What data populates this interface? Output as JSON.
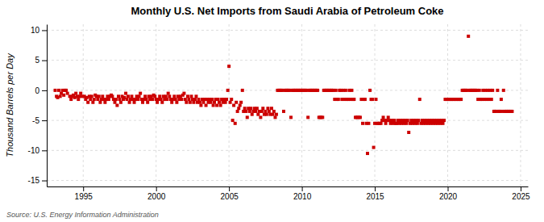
{
  "chart_data": {
    "type": "scatter",
    "title": "Monthly U.S. Net Imports from Saudi Arabia of Petroleum Coke",
    "ylabel": "Thousand Barrels per Day",
    "source": "Source: U.S. Energy Information Administration",
    "xlim": [
      1992.5,
      2025.5
    ],
    "ylim": [
      -16,
      11
    ],
    "xticks": [
      1995,
      2000,
      2005,
      2010,
      2015,
      2020,
      2025
    ],
    "yticks": [
      -15,
      -10,
      -5,
      0,
      5,
      10
    ],
    "grid": true,
    "color": "#cc0000",
    "marker": "square",
    "x": [
      1993.08,
      1993.17,
      1993.25,
      1993.33,
      1993.42,
      1993.5,
      1993.58,
      1993.67,
      1993.75,
      1993.83,
      1993.92,
      1994.08,
      1994.17,
      1994.25,
      1994.33,
      1994.42,
      1994.5,
      1994.58,
      1994.67,
      1994.75,
      1994.83,
      1994.92,
      1995.08,
      1995.17,
      1995.25,
      1995.33,
      1995.42,
      1995.5,
      1995.58,
      1995.67,
      1995.75,
      1995.83,
      1995.92,
      1996.0,
      1996.08,
      1996.17,
      1996.25,
      1996.33,
      1996.42,
      1996.5,
      1996.58,
      1996.67,
      1996.75,
      1996.83,
      1996.92,
      1997.0,
      1997.08,
      1997.17,
      1997.25,
      1997.33,
      1997.42,
      1997.5,
      1997.58,
      1997.67,
      1997.75,
      1997.83,
      1997.92,
      1998.0,
      1998.08,
      1998.17,
      1998.25,
      1998.33,
      1998.42,
      1998.5,
      1998.58,
      1998.67,
      1998.75,
      1998.83,
      1998.92,
      1999.0,
      1999.08,
      1999.17,
      1999.25,
      1999.33,
      1999.42,
      1999.5,
      1999.58,
      1999.67,
      1999.75,
      1999.83,
      1999.92,
      2000.0,
      2000.08,
      2000.17,
      2000.25,
      2000.33,
      2000.42,
      2000.5,
      2000.58,
      2000.67,
      2000.75,
      2000.83,
      2000.92,
      2001.0,
      2001.08,
      2001.17,
      2001.25,
      2001.33,
      2001.42,
      2001.5,
      2001.58,
      2001.67,
      2001.75,
      2001.83,
      2001.92,
      2002.0,
      2002.08,
      2002.17,
      2002.25,
      2002.33,
      2002.42,
      2002.5,
      2002.58,
      2002.67,
      2002.75,
      2002.83,
      2002.92,
      2003.0,
      2003.08,
      2003.17,
      2003.25,
      2003.33,
      2003.42,
      2003.5,
      2003.58,
      2003.67,
      2003.75,
      2003.83,
      2003.92,
      2004.0,
      2004.08,
      2004.17,
      2004.25,
      2004.33,
      2004.42,
      2004.5,
      2004.58,
      2004.67,
      2004.75,
      2004.83,
      2004.92,
      2005.0,
      2005.08,
      2005.17,
      2005.25,
      2005.33,
      2005.42,
      2005.5,
      2005.58,
      2005.67,
      2005.75,
      2005.83,
      2005.92,
      2006.0,
      2006.08,
      2006.17,
      2006.25,
      2006.33,
      2006.42,
      2006.5,
      2006.58,
      2006.67,
      2006.75,
      2006.83,
      2006.92,
      2007.0,
      2007.08,
      2007.17,
      2007.25,
      2007.33,
      2007.42,
      2007.5,
      2007.58,
      2007.67,
      2007.75,
      2007.83,
      2007.92,
      2008.0,
      2008.08,
      2008.17,
      2008.25,
      2008.33,
      2008.42,
      2008.5,
      2008.58,
      2008.67,
      2008.75,
      2008.83,
      2008.92,
      2009.0,
      2009.08,
      2009.17,
      2009.25,
      2009.33,
      2009.42,
      2009.5,
      2009.58,
      2009.67,
      2009.75,
      2009.83,
      2009.92,
      2010.0,
      2010.08,
      2010.17,
      2010.25,
      2010.33,
      2010.42,
      2010.5,
      2010.58,
      2010.67,
      2010.75,
      2010.83,
      2010.92,
      2011.0,
      2011.08,
      2011.17,
      2011.25,
      2011.33,
      2011.42,
      2011.5,
      2011.58,
      2011.67,
      2011.75,
      2011.83,
      2011.92,
      2012.0,
      2012.08,
      2012.17,
      2012.25,
      2012.33,
      2012.42,
      2012.5,
      2012.58,
      2012.67,
      2012.75,
      2012.83,
      2012.92,
      2013.0,
      2013.08,
      2013.17,
      2013.25,
      2013.33,
      2013.42,
      2013.5,
      2013.58,
      2013.67,
      2013.75,
      2013.83,
      2013.92,
      2014.0,
      2014.08,
      2014.17,
      2014.25,
      2014.33,
      2014.42,
      2014.5,
      2014.58,
      2014.67,
      2014.75,
      2014.83,
      2014.92,
      2015.0,
      2015.08,
      2015.17,
      2015.25,
      2015.33,
      2015.42,
      2015.5,
      2015.58,
      2015.67,
      2015.75,
      2015.83,
      2015.92,
      2016.0,
      2016.08,
      2016.17,
      2016.25,
      2016.33,
      2016.42,
      2016.5,
      2016.58,
      2016.67,
      2016.75,
      2016.83,
      2016.92,
      2017.0,
      2017.08,
      2017.17,
      2017.25,
      2017.33,
      2017.42,
      2017.5,
      2017.58,
      2017.67,
      2017.75,
      2017.83,
      2017.92,
      2018.0,
      2018.08,
      2018.17,
      2018.25,
      2018.33,
      2018.42,
      2018.5,
      2018.58,
      2018.67,
      2018.75,
      2018.83,
      2018.92,
      2019.0,
      2019.08,
      2019.17,
      2019.25,
      2019.33,
      2019.42,
      2019.5,
      2019.58,
      2019.67,
      2019.75,
      2019.83,
      2019.92,
      2020.0,
      2020.08,
      2020.17,
      2020.25,
      2020.33,
      2020.42,
      2020.5,
      2020.58,
      2020.67,
      2020.75,
      2020.83,
      2020.92,
      2021.0,
      2021.08,
      2021.17,
      2021.25,
      2021.33,
      2021.42,
      2021.5,
      2021.58,
      2021.67,
      2021.75,
      2021.83,
      2021.92,
      2022.0,
      2022.08,
      2022.17,
      2022.25,
      2022.33,
      2022.42,
      2022.5,
      2022.58,
      2022.67,
      2022.75,
      2022.83,
      2022.92,
      2023.0,
      2023.08,
      2023.17,
      2023.25,
      2023.33,
      2023.42,
      2023.5,
      2023.58,
      2023.67,
      2023.75,
      2023.83,
      2023.92,
      2024.0,
      2024.08,
      2024.17,
      2024.25,
      2024.33,
      2024.42
    ],
    "values": [
      0,
      -1.0,
      -1.2,
      0,
      -1.0,
      -0.5,
      0,
      -0.8,
      0,
      0,
      -0.5,
      -1.0,
      -1.5,
      -1.0,
      -0.8,
      -1.2,
      -0.5,
      -1.0,
      -1.5,
      -1.0,
      -0.5,
      -1.0,
      -1.0,
      -1.5,
      -1.2,
      -2.0,
      -1.0,
      -1.5,
      -1.0,
      -2.0,
      -1.5,
      -0.8,
      -1.0,
      -1.5,
      -1.0,
      -2.0,
      -1.5,
      -1.0,
      -1.5,
      -2.0,
      -1.5,
      -1.0,
      -1.5,
      -1.0,
      -0.8,
      -1.0,
      -1.5,
      -2.0,
      -1.5,
      -2.5,
      -1.0,
      -1.5,
      -2.0,
      -1.0,
      -1.5,
      -1.2,
      -0.5,
      -1.5,
      -1.0,
      -2.0,
      -1.5,
      -1.0,
      -1.5,
      -2.0,
      -1.5,
      -1.0,
      -1.5,
      -1.0,
      -0.5,
      -1.5,
      -2.0,
      -1.5,
      -1.0,
      -1.5,
      -2.0,
      -1.0,
      -1.5,
      -1.0,
      -1.5,
      -0.8,
      -1.0,
      -1.5,
      -2.0,
      -1.5,
      -1.0,
      -1.5,
      -2.0,
      -1.0,
      -1.5,
      -1.0,
      -1.5,
      -0.5,
      -1.0,
      -1.5,
      -2.0,
      -1.5,
      -1.0,
      -1.5,
      -2.0,
      -1.0,
      -1.5,
      -1.0,
      -1.5,
      -0.8,
      -0.5,
      -1.5,
      -2.0,
      -1.0,
      -1.5,
      -2.0,
      -1.0,
      -1.5,
      -2.0,
      -1.5,
      -1.0,
      -2.0,
      -1.5,
      -2.0,
      -2.5,
      -1.5,
      -2.0,
      -1.5,
      -2.5,
      -1.5,
      -2.0,
      -1.5,
      -2.0,
      -1.5,
      -2.5,
      -2.0,
      -1.5,
      -2.5,
      -1.5,
      -2.0,
      -2.5,
      -1.5,
      -2.0,
      -1.5,
      -2.0,
      -1.5,
      0,
      4.0,
      -2.0,
      -1.5,
      -5.0,
      -2.5,
      -5.5,
      -2.0,
      -3.5,
      -3.0,
      -2.5,
      -2.0,
      0,
      -3.5,
      -3.0,
      -3.5,
      -4.5,
      -3.0,
      -3.5,
      -3.0,
      -4.0,
      -3.5,
      -3.0,
      -3.5,
      -3.0,
      -4.0,
      -3.5,
      -4.5,
      -3.5,
      -3.0,
      -4.0,
      -3.5,
      -4.0,
      -3.0,
      -3.5,
      -4.0,
      -3.0,
      -4.0,
      -3.5,
      -4.5,
      -4.0,
      0,
      0,
      0,
      0,
      0,
      -3.5,
      0,
      0,
      0,
      0,
      0,
      -4.5,
      0,
      0,
      0,
      0,
      0,
      0,
      0,
      0,
      0,
      0,
      0,
      0,
      0,
      -4.5,
      0,
      0,
      0,
      0,
      0,
      0,
      0,
      0,
      -4.5,
      -4.5,
      -4.5,
      -4.5,
      0,
      0,
      0,
      0,
      0,
      0,
      0,
      0,
      0,
      -1.5,
      0,
      -1.5,
      -1.5,
      0,
      0,
      -1.5,
      0,
      -1.5,
      0,
      -1.5,
      -1.5,
      0,
      -1.5,
      0,
      -1.5,
      -1.5,
      -4.5,
      -4.5,
      -4.5,
      -4.5,
      -4.5,
      -1.5,
      -5.5,
      -1.5,
      -1.5,
      -5.5,
      -10.5,
      -5.5,
      0,
      -1.5,
      -1.5,
      -9.5,
      -5.5,
      -1.5,
      -5.5,
      -5.5,
      -5.5,
      -5.5,
      -5.0,
      -4.5,
      -5.0,
      -5.5,
      -5.0,
      -4.5,
      -5.0,
      -5.5,
      -5.0,
      -5.5,
      -5.0,
      -5.5,
      -5.5,
      -5.0,
      -5.5,
      -5.0,
      -5.5,
      -5.0,
      -5.5,
      -5.0,
      -5.5,
      -5.0,
      -7.0,
      -5.5,
      -5.0,
      -5.5,
      -5.0,
      -5.5,
      -5.0,
      -5.5,
      -5.0,
      -1.5,
      -5.5,
      -5.0,
      -5.5,
      -5.0,
      -5.5,
      -5.0,
      -5.5,
      -5.0,
      -5.5,
      -5.0,
      -5.5,
      -5.0,
      -5.5,
      -5.0,
      -5.5,
      -5.0,
      -5.5,
      -5.0,
      -5.5,
      -5.0,
      -1.5,
      -1.5,
      -1.5,
      -1.5,
      -1.5,
      -1.5,
      -1.5,
      -1.5,
      -1.5,
      -1.5,
      -1.5,
      -1.5,
      -1.5,
      -1.5,
      0,
      0,
      0,
      0,
      0,
      9.0,
      0,
      0,
      0,
      0,
      0,
      0,
      0,
      -1.5,
      0,
      -1.5,
      -1.5,
      0,
      -1.5,
      0,
      -1.5,
      0,
      -1.5,
      0,
      -1.5,
      0,
      -3.5,
      -3.5,
      -3.5,
      0,
      -3.5,
      -3.5,
      -1.5,
      -3.5,
      0,
      -3.5,
      -3.5,
      -3.5,
      -3.5,
      -3.5,
      -3.5,
      -3.5
    ]
  }
}
